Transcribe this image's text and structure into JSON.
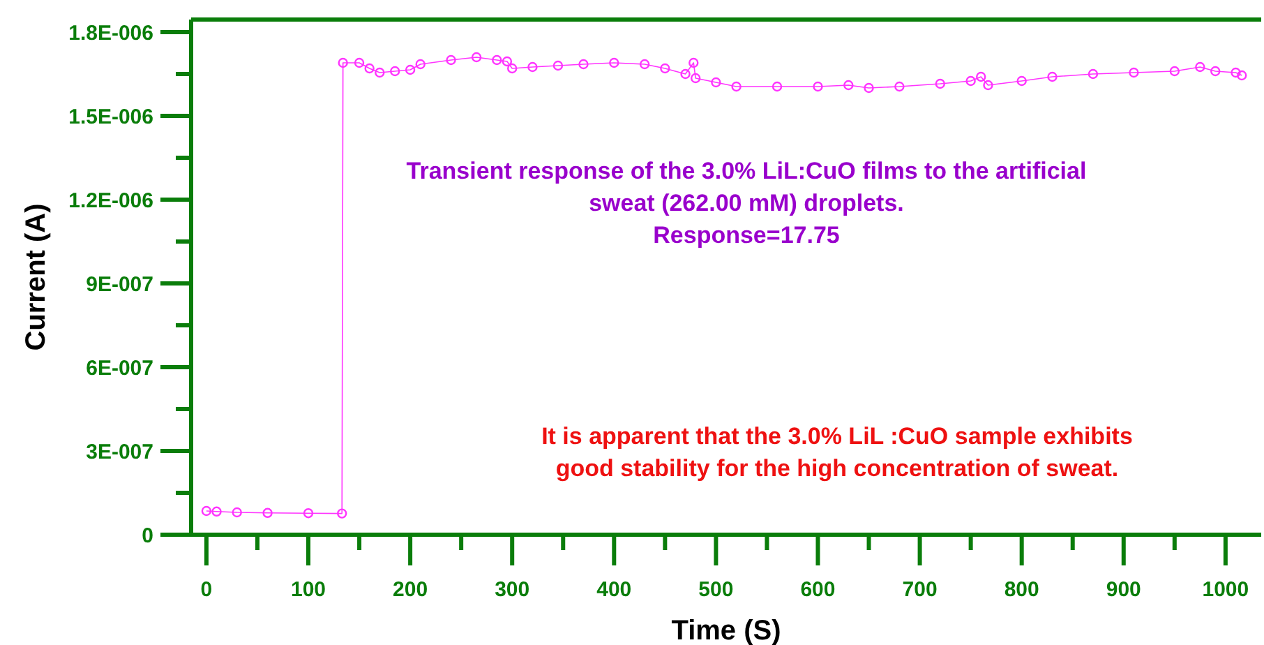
{
  "chart_data": {
    "type": "line",
    "xlabel": "Time (S)",
    "ylabel": "Current (A)",
    "xlim": [
      -15,
      1035
    ],
    "ylim": [
      0,
      1.845e-06
    ],
    "xticks": [
      0,
      {
        "value": 50,
        "label": null
      },
      100,
      {
        "value": 150,
        "label": null
      },
      200,
      {
        "value": 250,
        "label": null
      },
      300,
      {
        "value": 350,
        "label": null
      },
      400,
      {
        "value": 450,
        "label": null
      },
      500,
      {
        "value": 550,
        "label": null
      },
      600,
      {
        "value": 650,
        "label": null
      },
      700,
      {
        "value": 750,
        "label": null
      },
      800,
      {
        "value": 850,
        "label": null
      },
      900,
      {
        "value": 950,
        "label": null
      },
      1000
    ],
    "yticks": [
      {
        "value": 0,
        "label": "0"
      },
      {
        "value": 1.5e-07,
        "label": null
      },
      {
        "value": 3e-07,
        "label": "3E-007"
      },
      {
        "value": 4.5e-07,
        "label": null
      },
      {
        "value": 6e-07,
        "label": "6E-007"
      },
      {
        "value": 7.5e-07,
        "label": null
      },
      {
        "value": 9e-07,
        "label": "9E-007"
      },
      {
        "value": 1.05e-06,
        "label": null
      },
      {
        "value": 1.2e-06,
        "label": "1.2E-006"
      },
      {
        "value": 1.35e-06,
        "label": null
      },
      {
        "value": 1.5e-06,
        "label": "1.5E-006"
      },
      {
        "value": 1.65e-06,
        "label": null
      },
      {
        "value": 1.8e-06,
        "label": "1.8E-006"
      }
    ],
    "grid": false,
    "marker": "circle",
    "line_style": "solid",
    "x": [
      0,
      10,
      30,
      60,
      100,
      133,
      134,
      150,
      160,
      170,
      185,
      200,
      210,
      240,
      265,
      285,
      295,
      300,
      320,
      345,
      370,
      400,
      430,
      450,
      470,
      478,
      480,
      500,
      520,
      560,
      600,
      630,
      650,
      680,
      720,
      750,
      760,
      767,
      800,
      830,
      870,
      910,
      950,
      975,
      990,
      1010,
      1016
    ],
    "series": [
      {
        "color": "#ff33ff",
        "values": [
          8.5e-08,
          8.3e-08,
          8e-08,
          7.8e-08,
          7.7e-08,
          7.6e-08,
          1.69e-06,
          1.69e-06,
          1.67e-06,
          1.655e-06,
          1.66e-06,
          1.665e-06,
          1.685e-06,
          1.7e-06,
          1.71e-06,
          1.7e-06,
          1.695e-06,
          1.67e-06,
          1.675e-06,
          1.68e-06,
          1.685e-06,
          1.69e-06,
          1.685e-06,
          1.67e-06,
          1.65e-06,
          1.69e-06,
          1.635e-06,
          1.62e-06,
          1.605e-06,
          1.605e-06,
          1.605e-06,
          1.61e-06,
          1.6e-06,
          1.605e-06,
          1.615e-06,
          1.625e-06,
          1.64e-06,
          1.61e-06,
          1.625e-06,
          1.64e-06,
          1.65e-06,
          1.655e-06,
          1.66e-06,
          1.675e-06,
          1.66e-06,
          1.655e-06,
          1.645e-06
        ]
      }
    ],
    "annotations": [
      "Transient response of the 3.0% LiL:CuO films to the artificial\nsweat (262.00 mM) droplets.\nResponse=17.75",
      "It is apparent that the 3.0% LiL :CuO sample exhibits\ngood stability for the high concentration of sweat."
    ]
  }
}
